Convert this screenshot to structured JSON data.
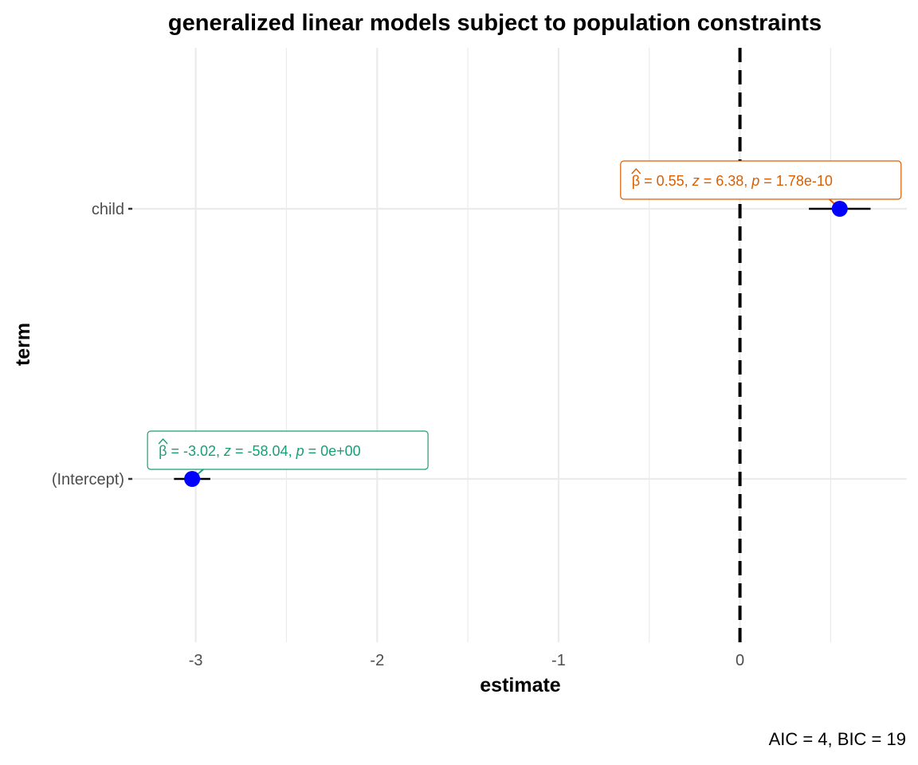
{
  "chart_data": {
    "type": "scatter",
    "title": "generalized linear models subject to population constraints",
    "xlabel": "estimate",
    "ylabel": "term",
    "caption": "AIC = 4, BIC = 19",
    "xlim": [
      -3.35,
      0.92
    ],
    "x_ticks": [
      -3,
      -2,
      -1,
      0
    ],
    "x_tick_labels": [
      "-3",
      "-2",
      "-1",
      "0"
    ],
    "categories": [
      "(Intercept)",
      "child"
    ],
    "reference_line_x": 0,
    "grid": true,
    "points": [
      {
        "term": "(Intercept)",
        "estimate": -3.02,
        "conf_low": -3.12,
        "conf_high": -2.92,
        "label": {
          "beta_symbol": "β",
          "beta_text": "= -3.02,",
          "z_symbol": "z",
          "z_text": "= -58.04,",
          "p_symbol": "p",
          "p_text": "= 0e+00"
        },
        "label_color": "#1b9e77"
      },
      {
        "term": "child",
        "estimate": 0.55,
        "conf_low": 0.38,
        "conf_high": 0.72,
        "label": {
          "beta_symbol": "β",
          "beta_text": "= 0.55,",
          "z_symbol": "z",
          "z_text": "= 6.38,",
          "p_symbol": "p",
          "p_text": "= 1.78e-10"
        },
        "label_color": "#d95f02"
      }
    ],
    "colors": {
      "point": "#0000ff",
      "errorbar": "#000000",
      "grid": "#ebebeb",
      "reference_line": "#000000"
    }
  }
}
